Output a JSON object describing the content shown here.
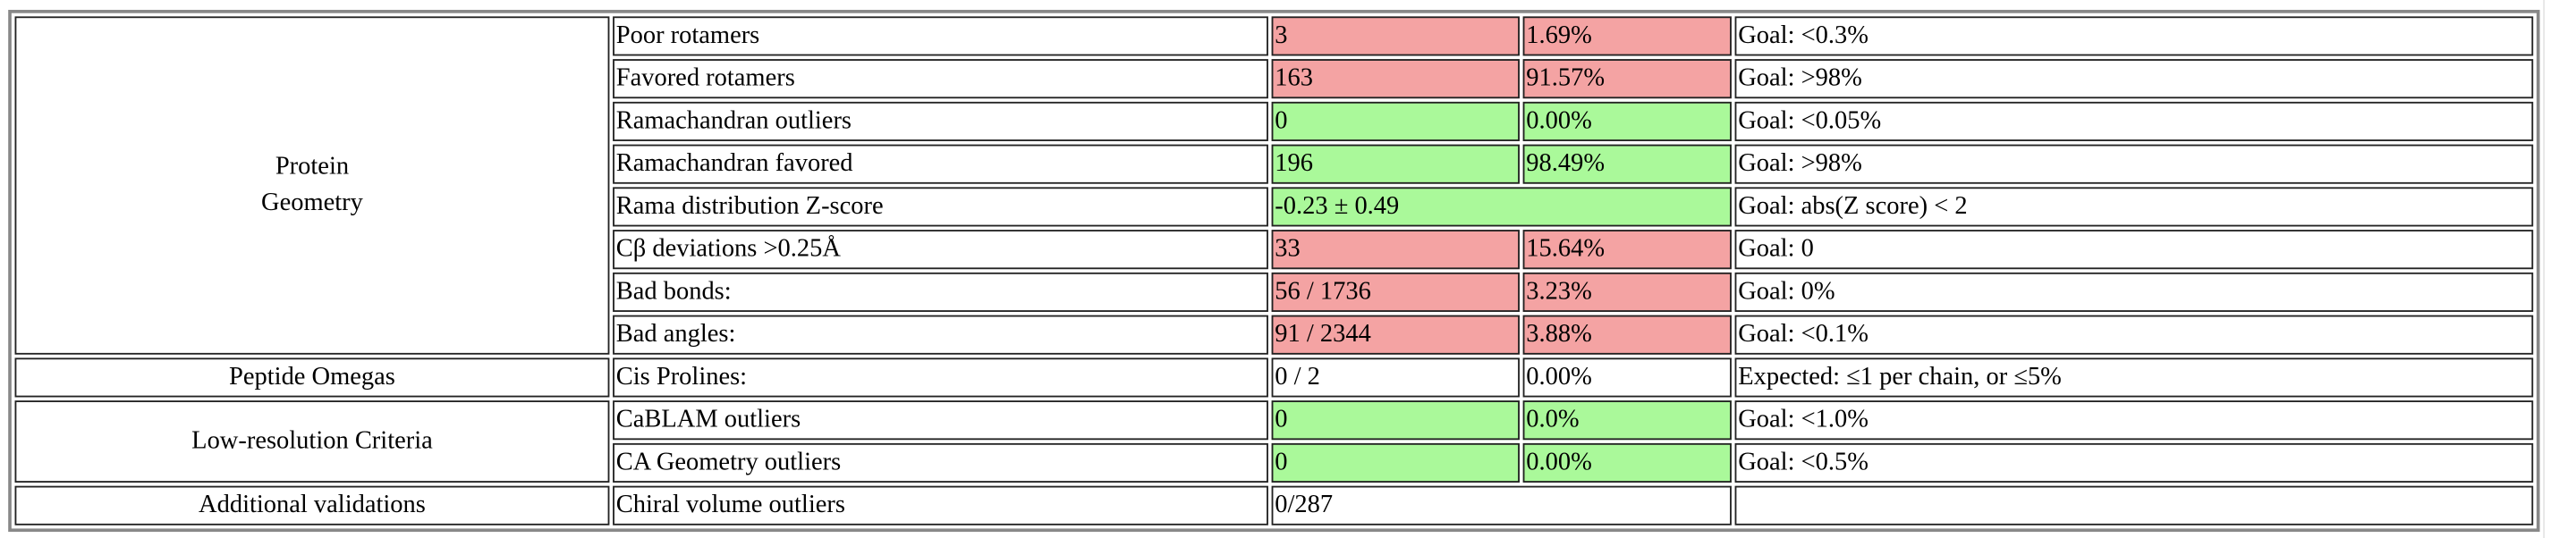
{
  "colors": {
    "bad": "#f4a3a3",
    "good": "#aaf99a",
    "neutral": "#ffffff"
  },
  "groups": {
    "protein_geometry": {
      "label_line1": "Protein",
      "label_line2": "Geometry"
    },
    "peptide_omegas": {
      "label": "Peptide Omegas"
    },
    "low_resolution": {
      "label": "Low-resolution Criteria"
    },
    "additional": {
      "label": "Additional validations"
    }
  },
  "rows": [
    {
      "metric": "Poor rotamers",
      "count": "3",
      "percent": "1.69%",
      "goal": "Goal: <0.3%",
      "status": "bad"
    },
    {
      "metric": "Favored rotamers",
      "count": "163",
      "percent": "91.57%",
      "goal": "Goal: >98%",
      "status": "bad"
    },
    {
      "metric": "Ramachandran outliers",
      "count": "0",
      "percent": "0.00%",
      "goal": "Goal: <0.05%",
      "status": "good"
    },
    {
      "metric": "Ramachandran favored",
      "count": "196",
      "percent": "98.49%",
      "goal": "Goal: >98%",
      "status": "good"
    },
    {
      "metric": "Rama distribution Z-score",
      "count": "-0.23 ± 0.49",
      "percent": "",
      "goal": "Goal: abs(Z score) < 2",
      "status": "good"
    },
    {
      "metric": "Cβ deviations >0.25Å",
      "count": "33",
      "percent": "15.64%",
      "goal": "Goal: 0",
      "status": "bad"
    },
    {
      "metric": "Bad bonds:",
      "count": "56 / 1736",
      "percent": "3.23%",
      "goal": "Goal: 0%",
      "status": "bad"
    },
    {
      "metric": "Bad angles:",
      "count": "91 / 2344",
      "percent": "3.88%",
      "goal": "Goal: <0.1%",
      "status": "bad"
    },
    {
      "metric": "Cis Prolines:",
      "count": "0 / 2",
      "percent": "0.00%",
      "goal": "Expected: ≤1 per chain, or ≤5%",
      "status": "neutral"
    },
    {
      "metric": "CaBLAM outliers",
      "count": "0",
      "percent": "0.0%",
      "goal": "Goal: <1.0%",
      "status": "good"
    },
    {
      "metric": "CA Geometry outliers",
      "count": "0",
      "percent": "0.00%",
      "goal": "Goal: <0.5%",
      "status": "good"
    },
    {
      "metric": "Chiral volume outliers",
      "count": "0/287",
      "percent": "",
      "goal": "",
      "status": "neutral"
    }
  ]
}
